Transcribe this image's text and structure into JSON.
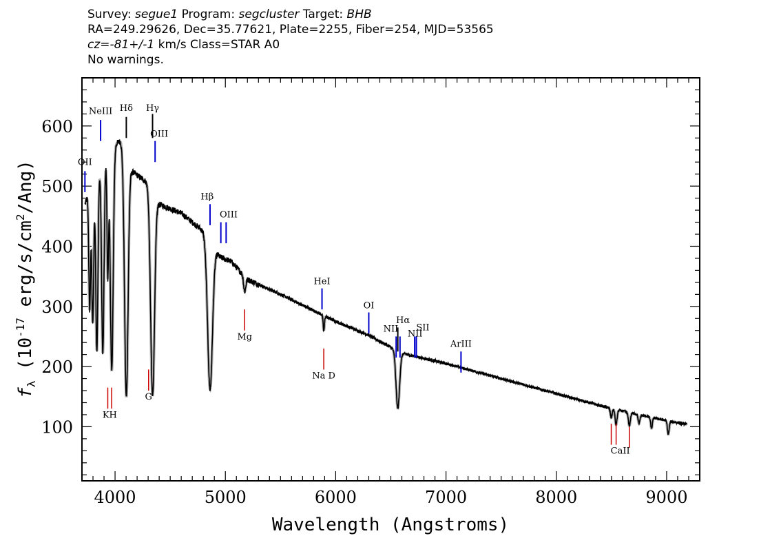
{
  "header": {
    "survey_label": "Survey:",
    "survey": "segue1",
    "program_label": "Program:",
    "program": "segcluster",
    "target_label": "Target:",
    "target": "BHB",
    "line2": "RA=249.29626, Dec=35.77621, Plate=2255, Fiber=254, MJD=53565",
    "cz_label": "cz=",
    "cz_value": "-81+/-1",
    "cz_rest": " km/s Class=STAR A0",
    "line4": "No warnings."
  },
  "chart_data": {
    "type": "line",
    "xlabel": "Wavelength (Angstroms)",
    "ylabel_prefix": "f",
    "ylabel_sub": "λ",
    "ylabel_main": " (10",
    "ylabel_sup1": "-17",
    "ylabel_mid": " erg/s/cm",
    "ylabel_sup2": "2",
    "ylabel_end": "/Ang)",
    "xlim": [
      3700,
      9300
    ],
    "ylim": [
      10,
      680
    ],
    "xticks": [
      "4000",
      "5000",
      "6000",
      "7000",
      "8000",
      "9000"
    ],
    "yticks": [
      "100",
      "200",
      "300",
      "400",
      "500",
      "600"
    ],
    "colors": {
      "spectrum": "#000000",
      "noise": "#b0b0b0",
      "emission": "#0000cc",
      "absorption": "#cc0000"
    },
    "continuum": [
      [
        3730,
        470
      ],
      [
        3800,
        515
      ],
      [
        3900,
        545
      ],
      [
        4000,
        570
      ],
      [
        4050,
        575
      ],
      [
        4150,
        525
      ],
      [
        4300,
        505
      ],
      [
        4400,
        470
      ],
      [
        4600,
        455
      ],
      [
        4800,
        425
      ],
      [
        4950,
        382
      ],
      [
        5050,
        375
      ],
      [
        5200,
        345
      ],
      [
        5500,
        320
      ],
      [
        6000,
        275
      ],
      [
        6300,
        252
      ],
      [
        6600,
        222
      ],
      [
        7000,
        205
      ],
      [
        7500,
        180
      ],
      [
        8000,
        155
      ],
      [
        8500,
        130
      ],
      [
        9000,
        110
      ],
      [
        9180,
        104
      ]
    ],
    "absorption_features": [
      {
        "center": 3770,
        "depth": 200,
        "width": 8
      },
      {
        "center": 3798,
        "depth": 240,
        "width": 9
      },
      {
        "center": 3835,
        "depth": 300,
        "width": 10
      },
      {
        "center": 3889,
        "depth": 320,
        "width": 11
      },
      {
        "center": 3934,
        "depth": 200,
        "width": 7
      },
      {
        "center": 3970,
        "depth": 370,
        "width": 13
      },
      {
        "center": 4102,
        "depth": 400,
        "width": 16
      },
      {
        "center": 4340,
        "depth": 340,
        "width": 18
      },
      {
        "center": 4861,
        "depth": 245,
        "width": 22
      },
      {
        "center": 5175,
        "depth": 25,
        "width": 10
      },
      {
        "center": 5892,
        "depth": 25,
        "width": 6
      },
      {
        "center": 6563,
        "depth": 95,
        "width": 16
      },
      {
        "center": 8498,
        "depth": 15,
        "width": 8
      },
      {
        "center": 8542,
        "depth": 25,
        "width": 9
      },
      {
        "center": 8662,
        "depth": 22,
        "width": 9
      },
      {
        "center": 8750,
        "depth": 15,
        "width": 8
      },
      {
        "center": 8863,
        "depth": 18,
        "width": 8
      },
      {
        "center": 9015,
        "depth": 22,
        "width": 8
      }
    ],
    "emission_lines": [
      {
        "label": "OII",
        "wl": 3727,
        "y1": 490,
        "y2": 525
      },
      {
        "label": "NeIII",
        "wl": 3869,
        "y1": 575,
        "y2": 610
      },
      {
        "label": "OIII",
        "wl": 4363,
        "y1": 540,
        "y2": 575
      },
      {
        "label": "Hβ",
        "wl": 4861,
        "y1": 435,
        "y2": 470
      },
      {
        "label": "OIII",
        "wl": 4959,
        "y1": 405,
        "y2": 440
      },
      {
        "label": "OIII",
        "wl": 5007,
        "y1": 405,
        "y2": 440
      },
      {
        "label": "HeI",
        "wl": 5876,
        "y1": 295,
        "y2": 330
      },
      {
        "label": "OI",
        "wl": 6300,
        "y1": 255,
        "y2": 290
      },
      {
        "label": "NII",
        "wl": 6548,
        "y1": 215,
        "y2": 250
      },
      {
        "label": "NII",
        "wl": 6583,
        "y1": 215,
        "y2": 250
      },
      {
        "label": "SII",
        "wl": 6716,
        "y1": 215,
        "y2": 250
      },
      {
        "label": "SII",
        "wl": 6731,
        "y1": 215,
        "y2": 250
      },
      {
        "label": "ArIII",
        "wl": 7136,
        "y1": 190,
        "y2": 225
      },
      {
        "label": "Hδ",
        "wl": 4102,
        "y1": 580,
        "y2": 615
      },
      {
        "label": "Hγ",
        "wl": 4340,
        "y1": 580,
        "y2": 620
      },
      {
        "label": "Hα",
        "wl": 6563,
        "y1": 225,
        "y2": 265
      }
    ],
    "absorption_lines": [
      {
        "label": "K",
        "wl": 3934,
        "y1": 130,
        "y2": 165
      },
      {
        "label": "H",
        "wl": 3969,
        "y1": 130,
        "y2": 165
      },
      {
        "label": "G",
        "wl": 4304,
        "y1": 160,
        "y2": 195
      },
      {
        "label": "Mg",
        "wl": 5175,
        "y1": 260,
        "y2": 295
      },
      {
        "label": "Na D",
        "wl": 5892,
        "y1": 195,
        "y2": 230
      },
      {
        "label": "CaII",
        "wl": 8498,
        "y1": 70,
        "y2": 105
      },
      {
        "label": "CaII",
        "wl": 8542,
        "y1": 70,
        "y2": 105
      },
      {
        "label": "CaII",
        "wl": 8662,
        "y1": 65,
        "y2": 100
      }
    ],
    "line_labels": [
      {
        "text": "OII",
        "wl": 3727,
        "y": 535,
        "color": "emission"
      },
      {
        "text": "NeIII",
        "wl": 3869,
        "y": 620,
        "color": "emission"
      },
      {
        "text": "Hδ",
        "wl": 4102,
        "y": 625,
        "color": "emission"
      },
      {
        "text": "Hγ",
        "wl": 4340,
        "y": 625,
        "color": "emission"
      },
      {
        "text": "OIII",
        "wl": 4400,
        "y": 582,
        "color": "emission"
      },
      {
        "text": "Hβ",
        "wl": 4835,
        "y": 478,
        "color": "emission"
      },
      {
        "text": "OIII",
        "wl": 5030,
        "y": 448,
        "color": "emission"
      },
      {
        "text": "HeI",
        "wl": 5876,
        "y": 337,
        "color": "emission"
      },
      {
        "text": "OI",
        "wl": 6300,
        "y": 297,
        "color": "emission"
      },
      {
        "text": "Hα",
        "wl": 6610,
        "y": 272,
        "color": "emission"
      },
      {
        "text": "NII",
        "wl": 6500,
        "y": 258,
        "color": "emission"
      },
      {
        "text": "NII",
        "wl": 6720,
        "y": 250,
        "color": "emission"
      },
      {
        "text": "SII",
        "wl": 6790,
        "y": 260,
        "color": "emission"
      },
      {
        "text": "ArIII",
        "wl": 7136,
        "y": 233,
        "color": "emission"
      },
      {
        "text": "KH",
        "wl": 3952,
        "y": 115,
        "color": "absorption"
      },
      {
        "text": "G",
        "wl": 4304,
        "y": 145,
        "color": "absorption"
      },
      {
        "text": "Mg",
        "wl": 5175,
        "y": 245,
        "color": "absorption"
      },
      {
        "text": "Na D",
        "wl": 5892,
        "y": 180,
        "color": "absorption"
      },
      {
        "text": "CaII",
        "wl": 8580,
        "y": 55,
        "color": "absorption"
      }
    ]
  }
}
